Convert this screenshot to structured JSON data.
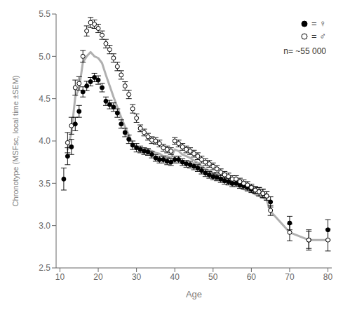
{
  "chart_data": {
    "type": "scatter",
    "xlabel": "Age",
    "ylabel": "Chronotype (MSFsc, local time ±SEM)",
    "xlim": [
      9,
      81
    ],
    "ylim": [
      2.5,
      5.5
    ],
    "xticks": [
      10,
      20,
      30,
      40,
      50,
      60,
      70,
      80
    ],
    "yticks": [
      2.5,
      {
        "value": 3,
        "label": "3.0"
      },
      3.5,
      {
        "value": 4,
        "label": "4.0"
      },
      4.5,
      {
        "value": 5,
        "label": "5.0"
      },
      5.5
    ],
    "legend": "upper right",
    "annotations": [
      "n= ~55 000"
    ],
    "series": [
      {
        "type": "line",
        "color": "#b0b0b0",
        "x": [
          12,
          13,
          14,
          15,
          16,
          17,
          18,
          19,
          20,
          21,
          22,
          23,
          24,
          25,
          26,
          27,
          28,
          29,
          30,
          31,
          32,
          33,
          34,
          35,
          36,
          37,
          38,
          39,
          40,
          41,
          42,
          43,
          44,
          45,
          46,
          47,
          48,
          49,
          50,
          51,
          52,
          53,
          54,
          55,
          56,
          57,
          58,
          59,
          60,
          61,
          62,
          63,
          64,
          65,
          70,
          75,
          80
        ],
        "values": [
          3.9,
          4.1,
          4.52,
          4.62,
          4.93,
          5.0,
          5.05,
          5.0,
          4.98,
          4.92,
          4.78,
          4.65,
          4.52,
          4.4,
          4.28,
          4.17,
          4.07,
          3.97,
          3.93,
          3.9,
          3.9,
          3.9,
          3.88,
          3.86,
          3.85,
          3.82,
          3.82,
          3.8,
          3.9,
          3.88,
          3.84,
          3.82,
          3.8,
          3.77,
          3.74,
          3.7,
          3.67,
          3.65,
          3.62,
          3.58,
          3.55,
          3.52,
          3.5,
          3.48,
          3.48,
          3.45,
          3.43,
          3.42,
          3.4,
          3.37,
          3.35,
          3.33,
          3.3,
          3.17,
          2.92,
          2.83,
          2.83
        ]
      },
      {
        "name": "= ♀",
        "type": "scatter",
        "marker": "circle",
        "color": "#000000",
        "x": [
          11,
          12,
          13,
          14,
          15,
          16,
          17,
          18,
          19,
          20,
          21,
          22,
          23,
          24,
          25,
          26,
          27,
          28,
          29,
          30,
          31,
          32,
          33,
          34,
          35,
          36,
          37,
          38,
          39,
          40,
          41,
          42,
          43,
          44,
          45,
          46,
          47,
          48,
          49,
          50,
          51,
          52,
          53,
          54,
          55,
          56,
          57,
          58,
          59,
          60,
          61,
          62,
          63,
          64,
          65,
          70,
          75,
          80
        ],
        "values": [
          3.55,
          3.82,
          3.93,
          4.2,
          4.35,
          4.58,
          4.65,
          4.7,
          4.75,
          4.72,
          4.63,
          4.47,
          4.43,
          4.4,
          4.33,
          4.2,
          4.1,
          4.02,
          3.95,
          3.92,
          3.9,
          3.88,
          3.87,
          3.84,
          3.8,
          3.78,
          3.78,
          3.76,
          3.75,
          3.78,
          3.78,
          3.75,
          3.73,
          3.72,
          3.7,
          3.68,
          3.65,
          3.62,
          3.6,
          3.58,
          3.57,
          3.55,
          3.53,
          3.52,
          3.5,
          3.5,
          3.48,
          3.47,
          3.45,
          3.43,
          3.42,
          3.4,
          3.38,
          3.35,
          3.28,
          3.03,
          2.83,
          2.95
        ],
        "errors": [
          0.13,
          0.1,
          0.09,
          0.08,
          0.07,
          0.06,
          0.055,
          0.05,
          0.05,
          0.05,
          0.05,
          0.05,
          0.05,
          0.05,
          0.05,
          0.05,
          0.05,
          0.05,
          0.05,
          0.05,
          0.04,
          0.04,
          0.04,
          0.04,
          0.04,
          0.04,
          0.04,
          0.04,
          0.04,
          0.04,
          0.04,
          0.04,
          0.04,
          0.04,
          0.04,
          0.04,
          0.04,
          0.04,
          0.04,
          0.04,
          0.04,
          0.04,
          0.04,
          0.04,
          0.04,
          0.04,
          0.04,
          0.04,
          0.04,
          0.04,
          0.04,
          0.05,
          0.05,
          0.05,
          0.06,
          0.08,
          0.1,
          0.12
        ]
      },
      {
        "name": "= ♂",
        "type": "scatter",
        "marker": "open_circle",
        "color": "#000000",
        "x": [
          12,
          13,
          14,
          15,
          16,
          17,
          18,
          19,
          20,
          21,
          22,
          23,
          24,
          25,
          26,
          27,
          28,
          29,
          30,
          31,
          32,
          33,
          34,
          35,
          36,
          37,
          38,
          39,
          40,
          41,
          42,
          43,
          44,
          45,
          46,
          47,
          48,
          49,
          50,
          51,
          52,
          53,
          54,
          55,
          56,
          57,
          58,
          59,
          60,
          61,
          62,
          63,
          64,
          65,
          70,
          75,
          80
        ],
        "values": [
          3.98,
          4.18,
          4.63,
          4.68,
          5.0,
          5.3,
          5.4,
          5.38,
          5.33,
          5.25,
          5.15,
          5.08,
          4.98,
          4.88,
          4.78,
          4.65,
          4.55,
          4.38,
          4.27,
          4.15,
          4.1,
          4.05,
          4.01,
          4.0,
          3.97,
          3.92,
          3.9,
          3.88,
          4.0,
          3.97,
          3.93,
          3.9,
          3.88,
          3.85,
          3.82,
          3.78,
          3.75,
          3.73,
          3.7,
          3.67,
          3.63,
          3.6,
          3.58,
          3.55,
          3.55,
          3.52,
          3.5,
          3.48,
          3.45,
          3.42,
          3.4,
          3.38,
          3.35,
          3.18,
          2.92,
          2.83,
          2.83
        ],
        "errors": [
          0.12,
          0.1,
          0.09,
          0.08,
          0.07,
          0.06,
          0.06,
          0.05,
          0.05,
          0.05,
          0.05,
          0.05,
          0.05,
          0.05,
          0.05,
          0.05,
          0.05,
          0.05,
          0.05,
          0.04,
          0.04,
          0.04,
          0.04,
          0.04,
          0.04,
          0.04,
          0.04,
          0.04,
          0.04,
          0.04,
          0.04,
          0.04,
          0.04,
          0.04,
          0.04,
          0.04,
          0.04,
          0.04,
          0.04,
          0.04,
          0.04,
          0.04,
          0.04,
          0.04,
          0.04,
          0.04,
          0.04,
          0.04,
          0.04,
          0.04,
          0.05,
          0.05,
          0.05,
          0.06,
          0.1,
          0.12,
          0.13
        ]
      }
    ]
  }
}
